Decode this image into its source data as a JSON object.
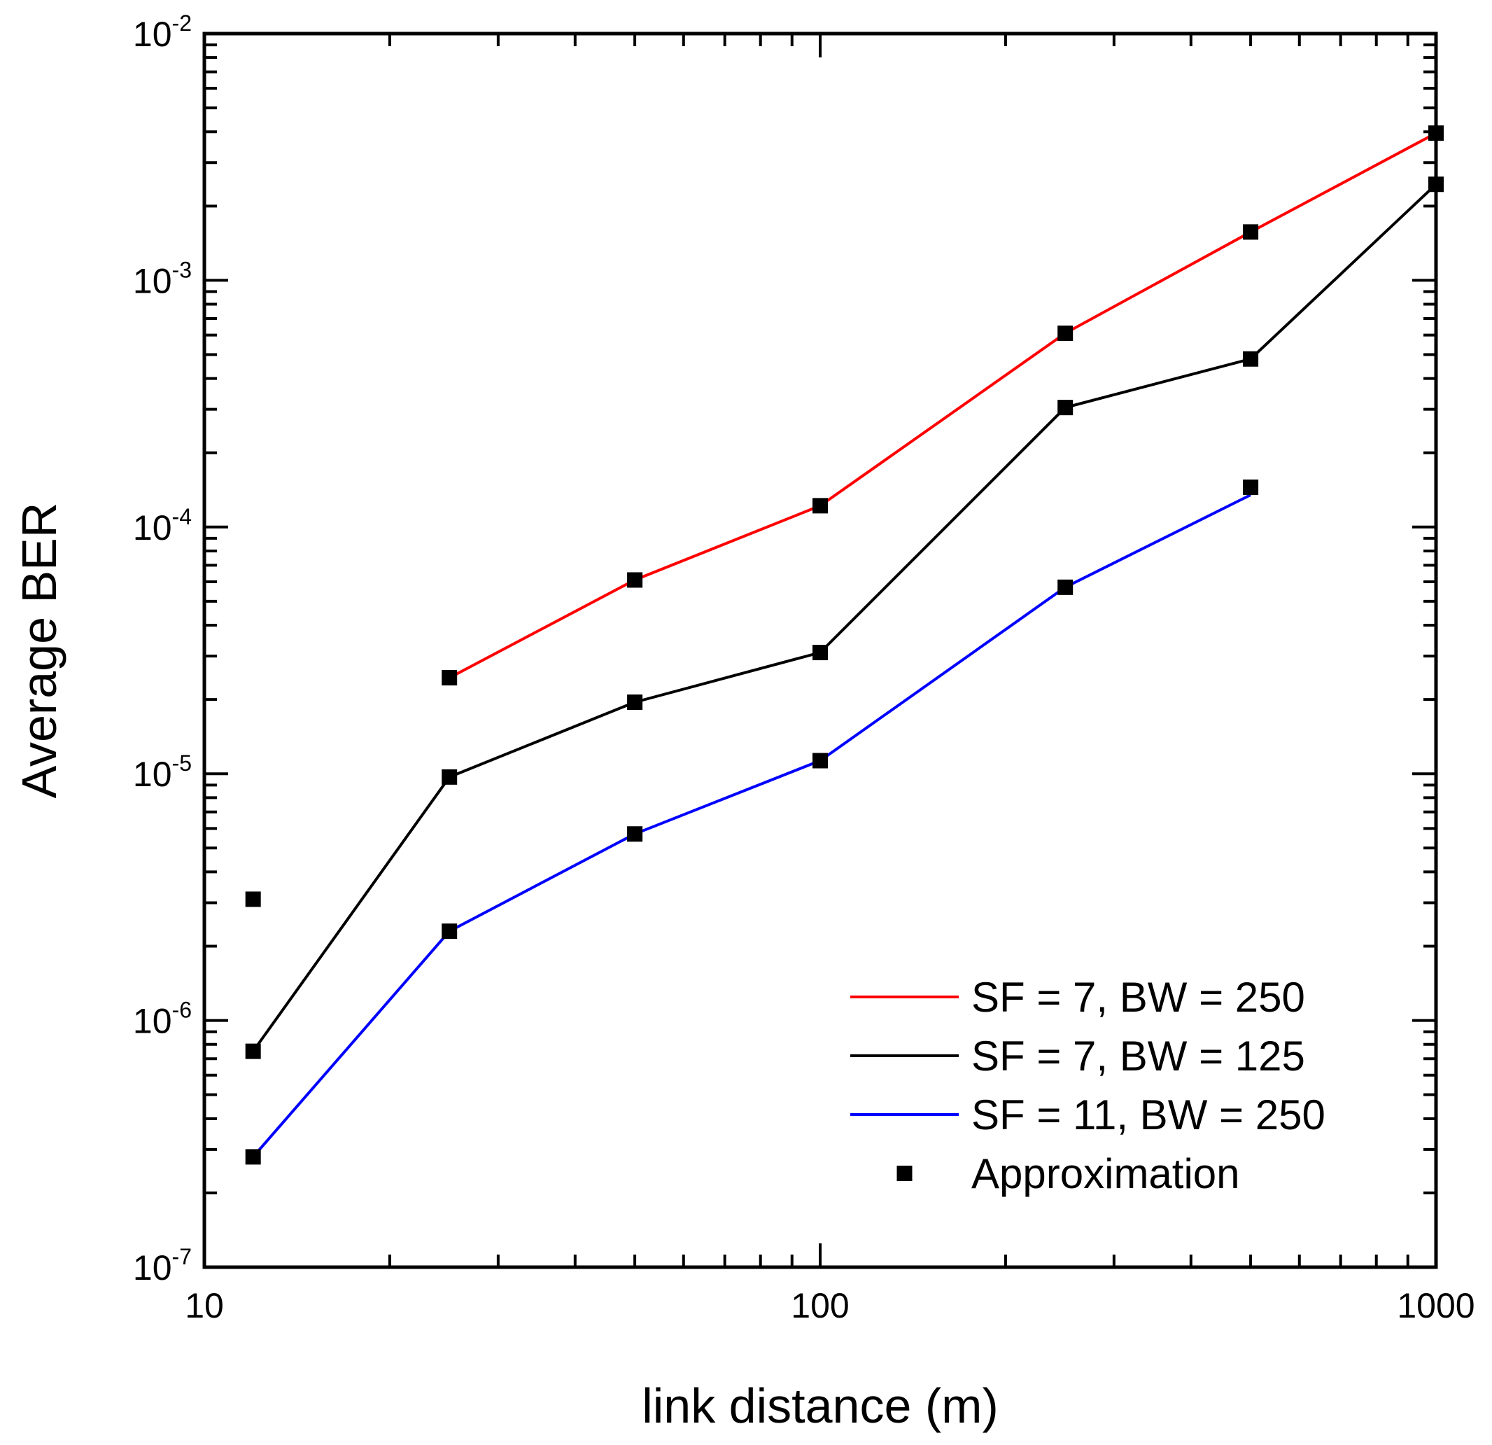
{
  "chart_data": {
    "type": "line",
    "xlabel": "link distance (m)",
    "ylabel": "Average BER",
    "xscale": "log",
    "yscale": "log",
    "xlim": [
      10,
      1000
    ],
    "ylim": [
      1e-07,
      0.01
    ],
    "x_ticks": [
      {
        "value": 10,
        "label": "10"
      },
      {
        "value": 100,
        "label": "100"
      },
      {
        "value": 1000,
        "label": "1000"
      }
    ],
    "y_ticks": [
      {
        "value": 1e-07,
        "base": "10",
        "exp": "-7"
      },
      {
        "value": 1e-06,
        "base": "10",
        "exp": "-6"
      },
      {
        "value": 1e-05,
        "base": "10",
        "exp": "-5"
      },
      {
        "value": 0.0001,
        "base": "10",
        "exp": "-4"
      },
      {
        "value": 0.001,
        "base": "10",
        "exp": "-3"
      },
      {
        "value": 0.01,
        "base": "10",
        "exp": "-2"
      }
    ],
    "grid": false,
    "legend_position": "bottom-right",
    "series": [
      {
        "name": "SF = 7, BW = 250",
        "color": "#ff0000",
        "x": [
          25,
          50,
          100,
          250,
          500,
          1000
        ],
        "y": [
          2.45e-05,
          6.1e-05,
          0.000122,
          0.00061,
          0.00157,
          0.00395
        ]
      },
      {
        "name": "SF = 7, BW = 125",
        "color": "#000000",
        "x": [
          12,
          25,
          50,
          100,
          250,
          500,
          1000
        ],
        "y": [
          7.5e-07,
          9.7e-06,
          1.95e-05,
          3.1e-05,
          0.000305,
          0.00048,
          0.00245
        ]
      },
      {
        "name": "SF = 11, BW = 250",
        "color": "#0000ff",
        "x": [
          12,
          25,
          50,
          100,
          250,
          500
        ],
        "y": [
          2.8e-07,
          2.3e-06,
          5.7e-06,
          1.13e-05,
          5.7e-05,
          0.000135
        ]
      }
    ],
    "markers": {
      "name": "Approximation",
      "color": "#000000",
      "shape": "square",
      "points": [
        {
          "x": 12,
          "y": 3.1e-06
        },
        {
          "x": 25,
          "y": 2.45e-05
        },
        {
          "x": 50,
          "y": 6.1e-05
        },
        {
          "x": 100,
          "y": 0.000122
        },
        {
          "x": 250,
          "y": 0.00061
        },
        {
          "x": 500,
          "y": 0.00157
        },
        {
          "x": 1000,
          "y": 0.00395
        },
        {
          "x": 12,
          "y": 7.5e-07
        },
        {
          "x": 25,
          "y": 9.7e-06
        },
        {
          "x": 50,
          "y": 1.95e-05
        },
        {
          "x": 100,
          "y": 3.1e-05
        },
        {
          "x": 250,
          "y": 0.000305
        },
        {
          "x": 500,
          "y": 0.00048
        },
        {
          "x": 1000,
          "y": 0.00245
        },
        {
          "x": 12,
          "y": 2.8e-07
        },
        {
          "x": 25,
          "y": 2.3e-06
        },
        {
          "x": 50,
          "y": 5.7e-06
        },
        {
          "x": 100,
          "y": 1.13e-05
        },
        {
          "x": 250,
          "y": 5.7e-05
        },
        {
          "x": 500,
          "y": 0.000145
        }
      ]
    }
  }
}
